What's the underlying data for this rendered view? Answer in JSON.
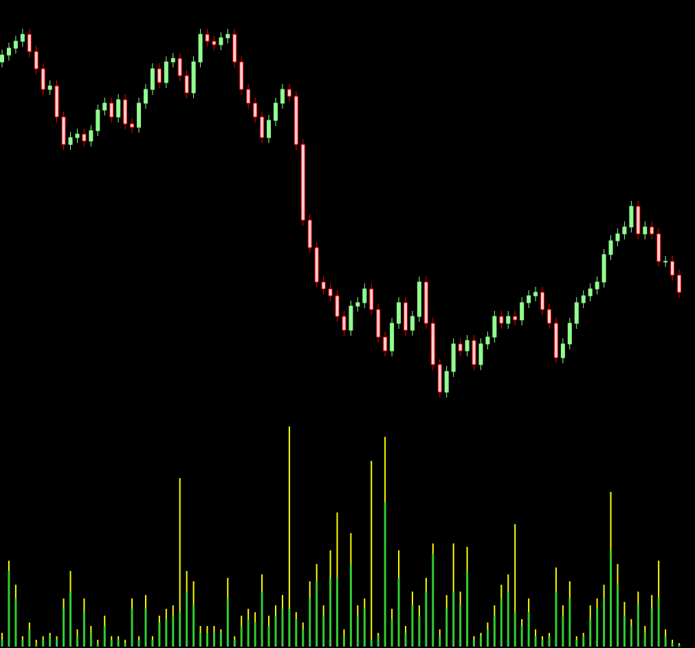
{
  "chart_data": [
    {
      "type": "candlestick",
      "up_color": "#90ff90",
      "down_color": "#ff0000",
      "down_body_color": "#ffd0d0",
      "ylim": [
        400,
        1000
      ],
      "open": [
        910,
        920,
        930,
        940,
        950,
        925,
        900,
        870,
        875,
        830,
        790,
        800,
        805,
        795,
        810,
        840,
        850,
        830,
        855,
        820,
        815,
        850,
        870,
        900,
        880,
        910,
        915,
        890,
        865,
        910,
        950,
        940,
        935,
        945,
        950,
        910,
        870,
        850,
        830,
        800,
        825,
        850,
        870,
        860,
        790,
        680,
        640,
        590,
        580,
        570,
        540,
        520,
        555,
        560,
        580,
        550,
        510,
        490,
        530,
        560,
        520,
        540,
        590,
        530,
        470,
        430,
        460,
        500,
        490,
        505,
        470,
        500,
        510,
        540,
        530,
        540,
        535,
        560,
        570,
        575,
        550,
        530,
        480,
        500,
        530,
        560,
        570,
        580,
        590,
        630,
        650,
        660,
        670,
        700,
        660,
        670,
        660,
        620,
        620,
        600
      ],
      "high": [
        928,
        938,
        948,
        958,
        958,
        933,
        908,
        883,
        883,
        838,
        808,
        813,
        813,
        818,
        848,
        858,
        858,
        863,
        863,
        828,
        858,
        878,
        908,
        908,
        918,
        923,
        923,
        898,
        918,
        958,
        958,
        948,
        953,
        958,
        958,
        918,
        878,
        858,
        838,
        833,
        858,
        878,
        878,
        868,
        798,
        688,
        648,
        598,
        588,
        578,
        548,
        563,
        568,
        588,
        588,
        558,
        518,
        538,
        568,
        568,
        548,
        598,
        598,
        538,
        478,
        468,
        508,
        508,
        513,
        513,
        508,
        518,
        548,
        548,
        548,
        548,
        568,
        578,
        583,
        583,
        558,
        538,
        508,
        538,
        568,
        578,
        588,
        598,
        638,
        658,
        668,
        678,
        708,
        708,
        678,
        678,
        668,
        628,
        628,
        608
      ],
      "low": [
        902,
        912,
        922,
        932,
        917,
        892,
        862,
        862,
        822,
        782,
        782,
        792,
        787,
        787,
        802,
        832,
        822,
        822,
        812,
        807,
        807,
        842,
        862,
        872,
        872,
        902,
        882,
        857,
        857,
        902,
        932,
        927,
        927,
        937,
        902,
        862,
        842,
        822,
        792,
        792,
        817,
        842,
        852,
        782,
        672,
        632,
        582,
        572,
        562,
        532,
        512,
        512,
        547,
        552,
        542,
        502,
        482,
        482,
        522,
        512,
        512,
        532,
        522,
        462,
        422,
        422,
        452,
        482,
        482,
        462,
        462,
        492,
        502,
        522,
        522,
        527,
        527,
        552,
        562,
        542,
        522,
        472,
        472,
        492,
        522,
        552,
        562,
        572,
        582,
        622,
        642,
        652,
        662,
        652,
        652,
        652,
        612,
        612,
        592,
        567
      ],
      "close": [
        920,
        930,
        940,
        950,
        925,
        900,
        870,
        875,
        830,
        790,
        800,
        805,
        795,
        810,
        840,
        850,
        830,
        855,
        820,
        815,
        850,
        870,
        900,
        880,
        910,
        915,
        890,
        865,
        910,
        950,
        940,
        935,
        945,
        950,
        910,
        870,
        850,
        830,
        800,
        825,
        850,
        870,
        860,
        790,
        680,
        640,
        590,
        580,
        570,
        540,
        520,
        555,
        560,
        580,
        550,
        510,
        490,
        530,
        560,
        520,
        540,
        590,
        530,
        470,
        430,
        460,
        500,
        490,
        505,
        470,
        500,
        510,
        540,
        530,
        540,
        535,
        560,
        570,
        575,
        550,
        530,
        480,
        500,
        530,
        560,
        570,
        580,
        590,
        630,
        650,
        660,
        670,
        700,
        660,
        670,
        660,
        620,
        620,
        600,
        575
      ]
    },
    {
      "type": "bar",
      "ylim": [
        0,
        330
      ],
      "series": [
        {
          "color": "#ffff00",
          "values": [
            20,
            125,
            90,
            15,
            35,
            10,
            15,
            20,
            15,
            70,
            110,
            25,
            70,
            30,
            10,
            45,
            15,
            15,
            10,
            70,
            15,
            75,
            15,
            45,
            55,
            60,
            245,
            110,
            95,
            30,
            30,
            30,
            25,
            100,
            15,
            45,
            55,
            50,
            105,
            45,
            60,
            75,
            320,
            50,
            35,
            95,
            120,
            60,
            140,
            195,
            25,
            165,
            60,
            70,
            270,
            20,
            305,
            55,
            140,
            30,
            80,
            60,
            100,
            150,
            25,
            75,
            150,
            80,
            145,
            15,
            20,
            35,
            60,
            90,
            105,
            178,
            40,
            70,
            25,
            15,
            20,
            115,
            60,
            95,
            15,
            20,
            60,
            70,
            90,
            225,
            120,
            65,
            40,
            80,
            30,
            75,
            125,
            25,
            10,
            5
          ]
        },
        {
          "color": "#32cd32",
          "values": [
            10,
            110,
            70,
            10,
            25,
            5,
            10,
            15,
            10,
            55,
            80,
            15,
            50,
            20,
            5,
            30,
            10,
            10,
            5,
            55,
            10,
            55,
            10,
            35,
            40,
            45,
            50,
            80,
            60,
            20,
            20,
            20,
            20,
            70,
            10,
            30,
            40,
            35,
            80,
            30,
            45,
            55,
            55,
            40,
            25,
            70,
            95,
            45,
            100,
            100,
            15,
            120,
            45,
            55,
            10,
            15,
            210,
            40,
            100,
            20,
            60,
            45,
            80,
            135,
            15,
            55,
            80,
            60,
            110,
            10,
            15,
            25,
            45,
            70,
            80,
            50,
            30,
            50,
            15,
            10,
            15,
            80,
            45,
            70,
            10,
            15,
            40,
            55,
            70,
            140,
            90,
            45,
            30,
            60,
            20,
            55,
            70,
            15,
            5,
            3
          ]
        }
      ]
    }
  ]
}
